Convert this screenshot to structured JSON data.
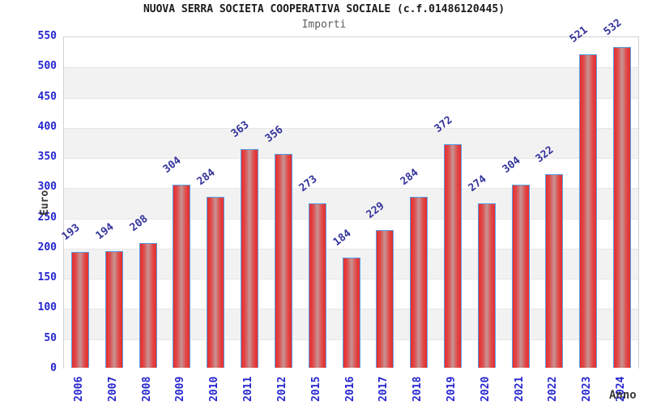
{
  "header": {
    "title": "NUOVA SERRA SOCIETA COOPERATIVA SOCIALE (c.f.01486120445)",
    "subtitle": "Importi"
  },
  "chart_data": {
    "type": "bar",
    "title": "NUOVA SERRA SOCIETA COOPERATIVA SOCIALE (c.f.01486120445)",
    "subtitle": "Importi",
    "xlabel": "Anno",
    "ylabel": "Euro",
    "categories": [
      "2006",
      "2007",
      "2008",
      "2009",
      "2010",
      "2011",
      "2012",
      "2015",
      "2016",
      "2017",
      "2018",
      "2019",
      "2020",
      "2021",
      "2022",
      "2023",
      "2024"
    ],
    "values": [
      193,
      194,
      208,
      304,
      284,
      363,
      356,
      273,
      184,
      229,
      284,
      372,
      274,
      304,
      322,
      521,
      532
    ],
    "ylim": [
      0,
      550
    ],
    "ytick_step": 50,
    "legend": null,
    "grid": "horizontal-bands",
    "colors": {
      "bar_fill_edge": "#e82d2d",
      "bar_fill_center": "#c79494",
      "bar_border": "#55a1e8",
      "tick_label": "#2525cf",
      "value_label": "#33339b",
      "axis_title": "#3a3a3a",
      "band_gray": "#f2f2f2",
      "band_white": "#ffffff",
      "gridline": "#e6e6e6",
      "plot_border": "#d2d2d2"
    }
  }
}
